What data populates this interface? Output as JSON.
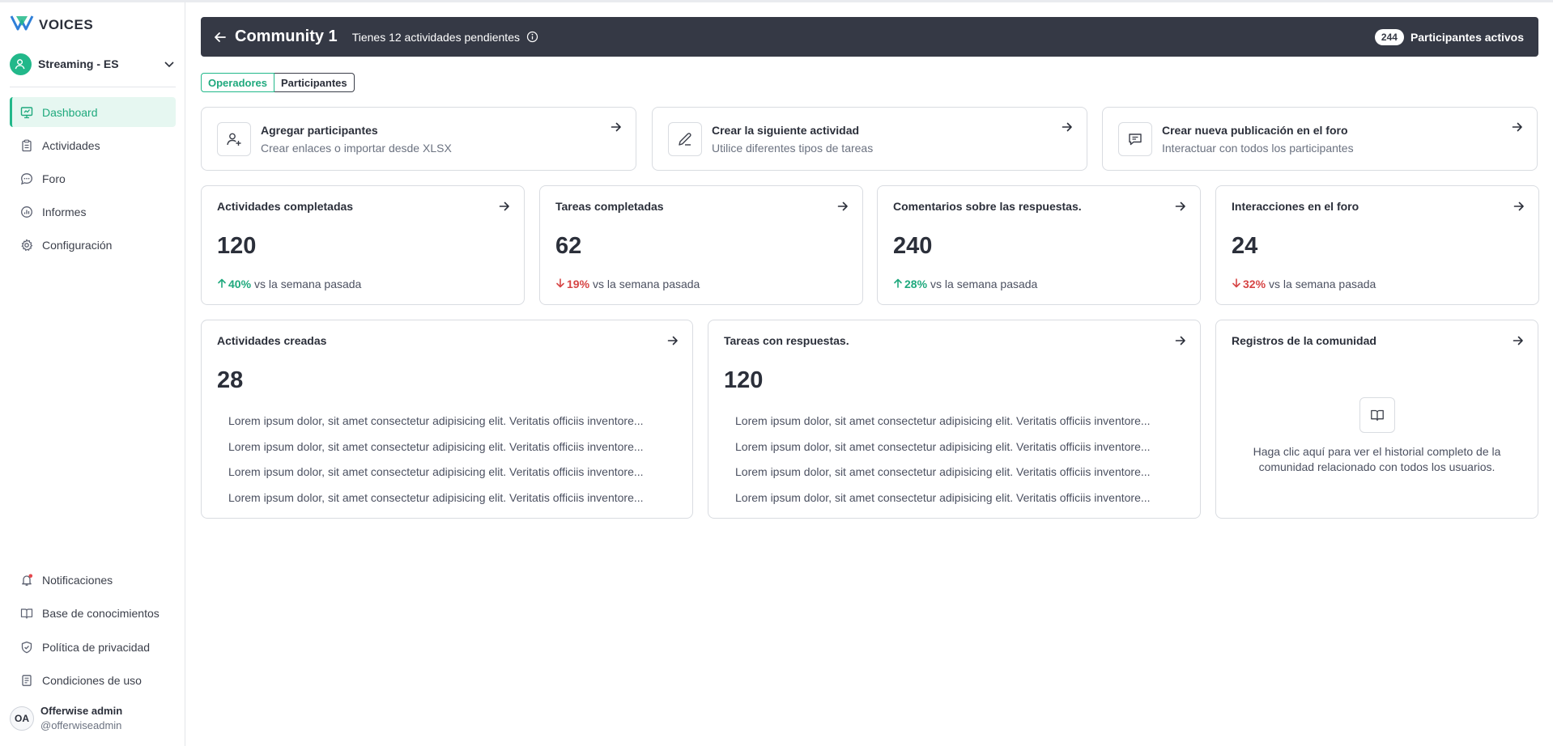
{
  "app": {
    "logo_text": "VOICES"
  },
  "workspace": {
    "name": "Streaming - ES"
  },
  "sidebar": {
    "items": [
      {
        "label": "Dashboard",
        "icon": "dashboard-icon",
        "active": true
      },
      {
        "label": "Actividades",
        "icon": "clipboard-icon"
      },
      {
        "label": "Foro",
        "icon": "chat-icon"
      },
      {
        "label": "Informes",
        "icon": "chart-icon"
      },
      {
        "label": "Configuración",
        "icon": "gear-icon"
      }
    ],
    "bottom_items": [
      {
        "label": "Notificaciones",
        "icon": "bell-icon"
      },
      {
        "label": "Base de conocimientos",
        "icon": "book-icon"
      },
      {
        "label": "Política de privacidad",
        "icon": "shield-icon"
      },
      {
        "label": "Condiciones de uso",
        "icon": "document-icon"
      }
    ],
    "user": {
      "initials": "OA",
      "name": "Offerwise admin",
      "handle": "@offerwiseadmin"
    }
  },
  "header": {
    "title": "Community 1",
    "subtitle": "Tienes 12 actividades pendientes",
    "participants_count": "244",
    "participants_label": "Participantes activos"
  },
  "tabs": [
    {
      "label": "Operadores",
      "active": true
    },
    {
      "label": "Participantes",
      "active": false
    }
  ],
  "actions": [
    {
      "title": "Agregar participantes",
      "desc": "Crear enlaces o importar desde XLSX"
    },
    {
      "title": "Crear la siguiente actividad",
      "desc": "Utilice diferentes tipos de tareas"
    },
    {
      "title": "Crear nueva publicación en el foro",
      "desc": "Interactuar con todos los participantes"
    }
  ],
  "stats": [
    {
      "title": "Actividades completadas",
      "value": "120",
      "pct": "40%",
      "direction": "up",
      "suffix": "vs la semana pasada"
    },
    {
      "title": "Tareas completadas",
      "value": "62",
      "pct": "19%",
      "direction": "down",
      "suffix": "vs la semana pasada"
    },
    {
      "title": "Comentarios sobre las respuestas.",
      "value": "240",
      "pct": "28%",
      "direction": "up",
      "suffix": "vs la semana pasada"
    },
    {
      "title": "Interacciones en el foro",
      "value": "24",
      "pct": "32%",
      "direction": "down",
      "suffix": "vs la semana pasada"
    }
  ],
  "lists": [
    {
      "title": "Actividades creadas",
      "value": "28",
      "items": [
        "Lorem ipsum dolor, sit amet consectetur adipisicing elit. Veritatis officiis inventore...",
        "Lorem ipsum dolor, sit amet consectetur adipisicing elit. Veritatis officiis inventore...",
        "Lorem ipsum dolor, sit amet consectetur adipisicing elit. Veritatis officiis inventore...",
        "Lorem ipsum dolor, sit amet consectetur adipisicing elit. Veritatis officiis inventore..."
      ]
    },
    {
      "title": "Tareas con respuestas.",
      "value": "120",
      "items": [
        "Lorem ipsum dolor, sit amet consectetur adipisicing elit. Veritatis officiis inventore...",
        "Lorem ipsum dolor, sit amet consectetur adipisicing elit. Veritatis officiis inventore...",
        "Lorem ipsum dolor, sit amet consectetur adipisicing elit. Veritatis officiis inventore...",
        "Lorem ipsum dolor, sit amet consectetur adipisicing elit. Veritatis officiis inventore..."
      ]
    }
  ],
  "log": {
    "title": "Registros de la comunidad",
    "text": "Haga clic aquí para ver el historial completo de la comunidad relacionado con todos los usuarios."
  },
  "colors": {
    "accent": "#22b88a",
    "header_bg": "#353945",
    "up": "#1fa97d",
    "down": "#d64545",
    "notification_dot": "#e5484d"
  }
}
